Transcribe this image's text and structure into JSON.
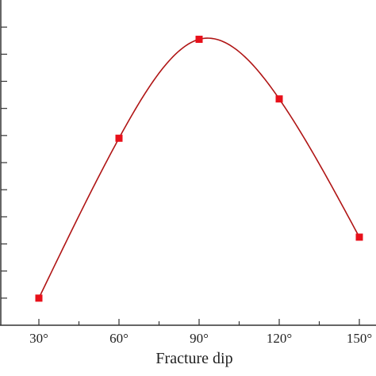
{
  "chart_data": {
    "type": "line",
    "x": [
      30,
      60,
      90,
      120,
      150
    ],
    "categories": [
      "30°",
      "60°",
      "90°",
      "120°",
      "150°"
    ],
    "values": [
      1.0,
      6.9,
      10.55,
      8.35,
      3.25
    ],
    "xlabel": "Fracture dip",
    "ylabel": "",
    "xlim": [
      30,
      150
    ],
    "ylim": [
      0,
      12
    ],
    "y_ticks": [
      0,
      1,
      2,
      3,
      4,
      5,
      6,
      7,
      8,
      9,
      10,
      11,
      12
    ],
    "y_tick_labels_visible": false,
    "smooth": true,
    "grid": false,
    "colors": {
      "line": "#b01515",
      "marker": "#e8101a",
      "axis": "#333333"
    }
  }
}
